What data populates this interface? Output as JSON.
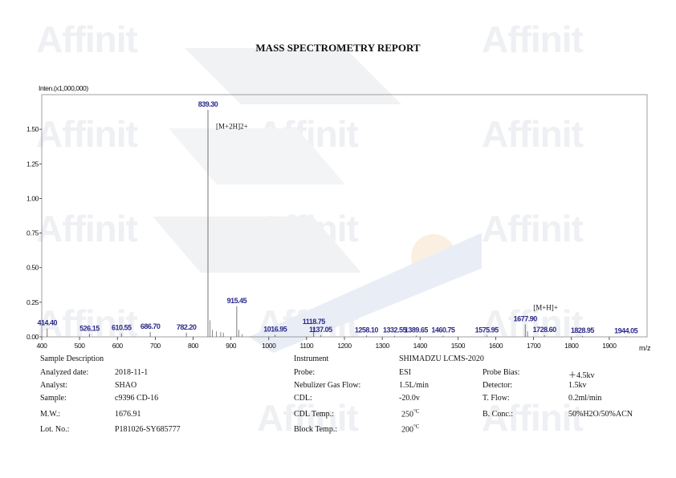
{
  "report": {
    "title": "MASS SPECTROMETRY REPORT"
  },
  "watermark": {
    "text": "Affinit",
    "color": "#eef0f3"
  },
  "chart_data": {
    "type": "bar",
    "ylabel": "Inten.(x1,000,000)",
    "xlabel": "m/z",
    "xlim": [
      400,
      2000
    ],
    "ylim": [
      0,
      1.75
    ],
    "xticks": [
      400,
      500,
      600,
      700,
      800,
      900,
      1000,
      1100,
      1200,
      1300,
      1400,
      1500,
      1600,
      1700,
      1800,
      1900
    ],
    "yticks": [
      "0.00",
      "0.25",
      "0.50",
      "0.75",
      "1.00",
      "1.25",
      "1.50"
    ],
    "grid": false,
    "peak_color": "#555555",
    "label_color": "#2b2b8a",
    "peaks": [
      {
        "mz": 414.4,
        "intensity": 0.06,
        "label": "414.40"
      },
      {
        "mz": 526.15,
        "intensity": 0.02,
        "label": "526.15"
      },
      {
        "mz": 610.55,
        "intensity": 0.025,
        "label": "610.55"
      },
      {
        "mz": 686.7,
        "intensity": 0.035,
        "label": "686.70"
      },
      {
        "mz": 782.2,
        "intensity": 0.03,
        "label": "782.20"
      },
      {
        "mz": 839.3,
        "intensity": 1.64,
        "label": "839.30"
      },
      {
        "mz": 915.45,
        "intensity": 0.22,
        "label": "915.45"
      },
      {
        "mz": 1016.95,
        "intensity": 0.015,
        "label": "1016.95"
      },
      {
        "mz": 1118.75,
        "intensity": 0.07,
        "label": "1118.75"
      },
      {
        "mz": 1137.05,
        "intensity": 0.012,
        "label": "1137.05"
      },
      {
        "mz": 1258.1,
        "intensity": 0.01,
        "label": "1258.10"
      },
      {
        "mz": 1332.55,
        "intensity": 0.008,
        "label": "1332.55"
      },
      {
        "mz": 1389.65,
        "intensity": 0.01,
        "label": "1389.65"
      },
      {
        "mz": 1460.75,
        "intensity": 0.008,
        "label": "1460.75"
      },
      {
        "mz": 1575.95,
        "intensity": 0.01,
        "label": "1575.95"
      },
      {
        "mz": 1677.9,
        "intensity": 0.09,
        "label": "1677.90"
      },
      {
        "mz": 1728.6,
        "intensity": 0.012,
        "label": "1728.60"
      },
      {
        "mz": 1828.95,
        "intensity": 0.006,
        "label": "1828.95"
      },
      {
        "mz": 1944.05,
        "intensity": 0.004,
        "label": "1944.05"
      }
    ],
    "minor_peaks": [
      {
        "mz": 845.0,
        "intensity": 0.12
      },
      {
        "mz": 851.0,
        "intensity": 0.05
      },
      {
        "mz": 862.0,
        "intensity": 0.04
      },
      {
        "mz": 873.0,
        "intensity": 0.035
      },
      {
        "mz": 880.0,
        "intensity": 0.03
      },
      {
        "mz": 921.0,
        "intensity": 0.05
      },
      {
        "mz": 930.0,
        "intensity": 0.02
      },
      {
        "mz": 1684.0,
        "intensity": 0.04
      }
    ],
    "annotations": [
      {
        "text": "[M+2H]2+",
        "mz": 839.3,
        "intensity": 1.55
      },
      {
        "text": "[M+H]+",
        "mz": 1677.9,
        "intensity": 0.24
      }
    ]
  },
  "details": {
    "sample_description": "Sample Description",
    "instrument_label": "Instrument",
    "instrument_value": "SHIMADZU LCMS-2020",
    "left": [
      {
        "label": "Analyzed date:",
        "value": "2018-11-1"
      },
      {
        "label": "Analyst:",
        "value": "SHAO"
      },
      {
        "label": "Sample:",
        "value": "c9396 CD-16"
      },
      {
        "label": "M.W.:",
        "value": "1676.91"
      },
      {
        "label": "Lot. No.:",
        "value": "P181026-SY685777"
      }
    ],
    "middle": [
      {
        "label": "Probe:",
        "value": "ESI"
      },
      {
        "label": "Nebulizer Gas Flow:",
        "value": "1.5L/min"
      },
      {
        "label": "CDL:",
        "value": "-20.0v"
      },
      {
        "label": "CDL Temp.:",
        "value": "250",
        "unit": "°C"
      },
      {
        "label": "Block Temp.:",
        "value": "200",
        "unit": "°C"
      }
    ],
    "right": [
      {
        "label": "Probe Bias:",
        "value": "＋4.5kv"
      },
      {
        "label": "Detector:",
        "value": "1.5kv"
      },
      {
        "label": "T. Flow:",
        "value": "0.2ml/min"
      },
      {
        "label": "B. Conc.:",
        "value": "50%H2O/50%ACN"
      }
    ]
  }
}
